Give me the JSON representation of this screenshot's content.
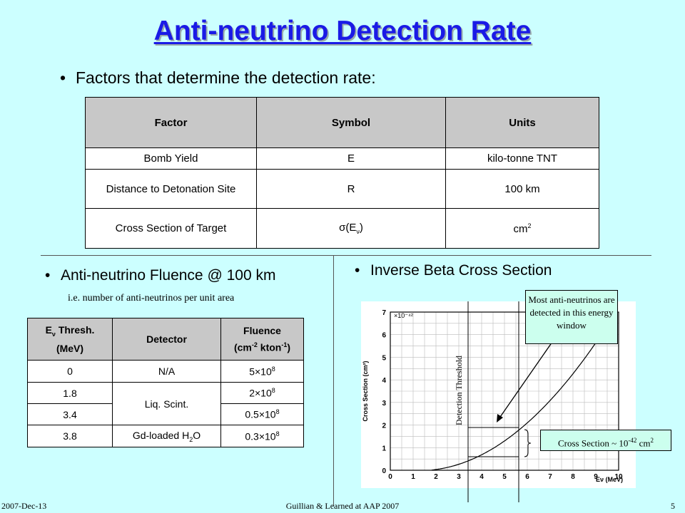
{
  "title": "Anti-neutrino Detection Rate",
  "bullet1": "Factors that determine the detection rate:",
  "factors_table": {
    "headers": [
      "Factor",
      "Symbol",
      "Units"
    ],
    "rows": [
      [
        "Bomb Yield",
        "E",
        "kilo-tonne TNT"
      ],
      [
        "Distance to Detonation Site",
        "R",
        "100 km"
      ],
      [
        "Cross Section of Target",
        "σ(Eν)",
        "cm2"
      ]
    ]
  },
  "bullet2": "Anti-neutrino Fluence @ 100 km",
  "bullet2_note": "i.e. number of anti-neutrinos per unit area",
  "fluence_table": {
    "headers": [
      "Eν Thresh. (MeV)",
      "Detector",
      "Fluence (cm-2 kton-1)"
    ],
    "rows": [
      [
        "0",
        "N/A",
        "5×108"
      ],
      [
        "1.8",
        "Liq. Scint.",
        "2×108"
      ],
      [
        "3.4",
        "",
        "0.5×108"
      ],
      [
        "3.8",
        "Gd-loaded H2O",
        "0.3×108"
      ]
    ]
  },
  "bullet3": "Inverse Beta Cross Section",
  "plot": {
    "ylabel": "Cross Section (cm²)",
    "scale_label": "×10⁻⁴²",
    "xlabel": "Eν (MeV)",
    "yticks": [
      "0",
      "1",
      "2",
      "3",
      "4",
      "5",
      "6",
      "7"
    ],
    "xticks": [
      "0",
      "1",
      "2",
      "3",
      "4",
      "5",
      "6",
      "7",
      "8",
      "9",
      "10"
    ]
  },
  "threshold_label": "Detection Threshold",
  "callout_window": "Most anti-neutrinos are detected in this energy window",
  "callout_xs": "Cross Section ~ 10-42 cm2",
  "footer": {
    "date": "2007-Dec-13",
    "credit": "Guillian & Learned at AAP 2007",
    "page": "5"
  }
}
